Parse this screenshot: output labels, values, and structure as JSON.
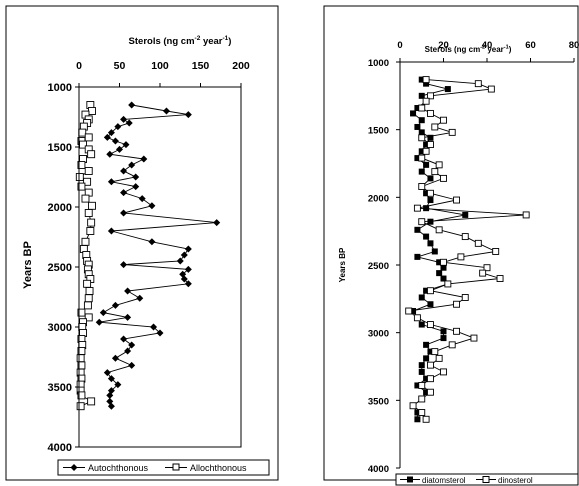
{
  "chart_data": [
    {
      "type": "line",
      "orientation": "depth-profile",
      "title": "",
      "xlabel_text": "Sterols (ng cm",
      "xlabel_unit_sup": "-2",
      "xlabel_text2": " year",
      "xlabel_unit_sup2": "-1",
      "xlabel_close": ")",
      "ylabel": "Years BP",
      "xlim": [
        0,
        200
      ],
      "ylim": [
        1000,
        4000
      ],
      "y_inverted": true,
      "x_ticks": [
        0,
        50,
        100,
        150,
        200
      ],
      "y_ticks": [
        1000,
        1500,
        2000,
        2500,
        3000,
        3500,
        4000
      ],
      "grid": false,
      "legend_position": "bottom",
      "series": [
        {
          "name": "Autochthonous",
          "marker": "filled-diamond",
          "color": "#000000",
          "y": [
            1150,
            1200,
            1230,
            1270,
            1300,
            1330,
            1380,
            1420,
            1450,
            1480,
            1520,
            1560,
            1600,
            1650,
            1700,
            1750,
            1790,
            1830,
            1880,
            1930,
            1990,
            2050,
            2130,
            2200,
            2290,
            2350,
            2400,
            2450,
            2480,
            2520,
            2560,
            2600,
            2640,
            2700,
            2760,
            2820,
            2880,
            2920,
            2960,
            3000,
            3050,
            3100,
            3150,
            3200,
            3260,
            3320,
            3380,
            3430,
            3480,
            3530,
            3570,
            3620,
            3660
          ],
          "x": [
            65,
            108,
            135,
            55,
            62,
            48,
            40,
            35,
            45,
            58,
            50,
            38,
            80,
            65,
            55,
            70,
            40,
            70,
            55,
            78,
            90,
            55,
            170,
            40,
            90,
            135,
            130,
            125,
            55,
            135,
            128,
            130,
            135,
            60,
            75,
            45,
            30,
            60,
            25,
            92,
            100,
            55,
            65,
            60,
            45,
            65,
            35,
            40,
            48,
            40,
            38,
            38,
            40
          ]
        },
        {
          "name": "Allochthonous",
          "marker": "open-square",
          "color": "#000000",
          "y": [
            1150,
            1200,
            1230,
            1270,
            1300,
            1330,
            1380,
            1420,
            1450,
            1480,
            1520,
            1560,
            1600,
            1650,
            1700,
            1750,
            1790,
            1830,
            1880,
            1930,
            1990,
            2050,
            2130,
            2200,
            2290,
            2350,
            2400,
            2450,
            2480,
            2520,
            2560,
            2600,
            2640,
            2700,
            2760,
            2820,
            2880,
            2920,
            2960,
            3000,
            3050,
            3100,
            3150,
            3200,
            3260,
            3320,
            3380,
            3430,
            3480,
            3530,
            3570,
            3620,
            3660
          ],
          "x": [
            14,
            16,
            8,
            12,
            10,
            6,
            4,
            12,
            3,
            5,
            12,
            15,
            5,
            3,
            12,
            1,
            10,
            3,
            12,
            8,
            16,
            12,
            15,
            14,
            8,
            6,
            9,
            10,
            12,
            11,
            12,
            14,
            10,
            13,
            12,
            11,
            3,
            12,
            5,
            4,
            5,
            3,
            4,
            3,
            2,
            3,
            2,
            3,
            2,
            2,
            3,
            15,
            2
          ]
        }
      ]
    },
    {
      "type": "line",
      "orientation": "depth-profile",
      "title": "",
      "xlabel_text": "Sterols (ng cm",
      "xlabel_unit_sup": "-2",
      "xlabel_text2": " year",
      "xlabel_unit_sup2": "-1",
      "xlabel_close": ")",
      "ylabel": "Years BP",
      "xlim": [
        0,
        80
      ],
      "ylim": [
        1000,
        4000
      ],
      "y_inverted": true,
      "x_ticks": [
        0,
        20,
        40,
        60,
        80
      ],
      "y_ticks": [
        1000,
        1500,
        2000,
        2500,
        3000,
        3500,
        4000
      ],
      "grid": false,
      "legend_position": "bottom",
      "series": [
        {
          "name": "diatomsterol",
          "marker": "filled-square",
          "color": "#000000",
          "y": [
            1130,
            1160,
            1200,
            1250,
            1290,
            1340,
            1380,
            1430,
            1480,
            1520,
            1560,
            1610,
            1660,
            1710,
            1760,
            1810,
            1860,
            1920,
            1970,
            2020,
            2080,
            2130,
            2180,
            2240,
            2290,
            2340,
            2400,
            2440,
            2480,
            2520,
            2560,
            2600,
            2640,
            2690,
            2740,
            2790,
            2840,
            2890,
            2940,
            2990,
            3040,
            3090,
            3140,
            3190,
            3240,
            3290,
            3340,
            3390,
            3440,
            3490,
            3540,
            3590,
            3640
          ],
          "x": [
            10,
            12,
            22,
            10,
            12,
            8,
            6,
            10,
            8,
            10,
            14,
            12,
            10,
            8,
            12,
            10,
            14,
            10,
            12,
            14,
            12,
            30,
            14,
            8,
            12,
            14,
            16,
            8,
            18,
            20,
            18,
            20,
            22,
            12,
            10,
            14,
            6,
            8,
            10,
            20,
            20,
            12,
            14,
            12,
            10,
            10,
            12,
            8,
            12,
            10,
            6,
            8,
            8
          ]
        },
        {
          "name": "dinosterol",
          "marker": "open-square",
          "color": "#000000",
          "y": [
            1130,
            1160,
            1200,
            1250,
            1290,
            1340,
            1380,
            1430,
            1480,
            1520,
            1560,
            1610,
            1660,
            1710,
            1760,
            1810,
            1860,
            1920,
            1970,
            2020,
            2080,
            2130,
            2180,
            2240,
            2290,
            2340,
            2400,
            2440,
            2480,
            2520,
            2560,
            2600,
            2640,
            2690,
            2740,
            2790,
            2840,
            2890,
            2940,
            2990,
            3040,
            3090,
            3140,
            3190,
            3240,
            3290,
            3340,
            3390,
            3440,
            3490,
            3540,
            3590,
            3640
          ],
          "x": [
            12,
            36,
            42,
            14,
            12,
            10,
            14,
            20,
            16,
            24,
            10,
            14,
            12,
            10,
            18,
            16,
            20,
            10,
            14,
            26,
            8,
            58,
            10,
            18,
            30,
            36,
            44,
            28,
            20,
            40,
            38,
            46,
            22,
            14,
            30,
            26,
            4,
            8,
            14,
            26,
            34,
            24,
            16,
            18,
            14,
            20,
            14,
            10,
            14,
            10,
            6,
            10,
            12
          ]
        }
      ]
    }
  ]
}
